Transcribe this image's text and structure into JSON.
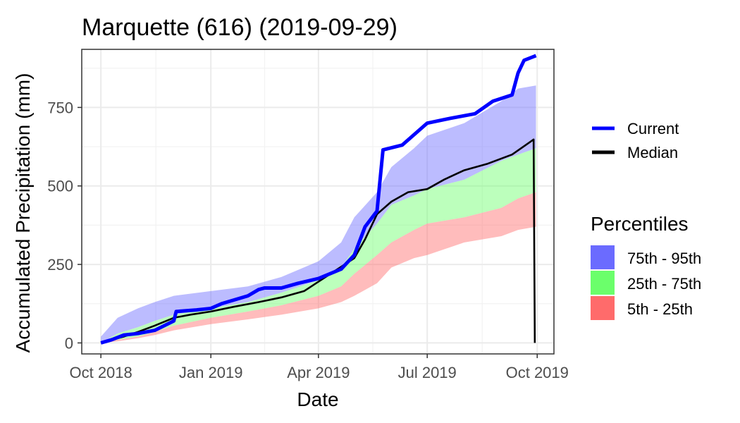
{
  "chart_data": {
    "type": "line",
    "title": "Marquette (616) (2019-09-29)",
    "xlabel": "Date",
    "ylabel": "Accumulated Precipitation (mm)",
    "x_range": [
      "2018-09-15",
      "2019-10-15"
    ],
    "ylim": [
      -35,
      935
    ],
    "x_ticks": [
      {
        "date": "2018-10-01",
        "label": "Oct 2018"
      },
      {
        "date": "2019-01-01",
        "label": "Jan 2019"
      },
      {
        "date": "2019-04-01",
        "label": "Apr 2019"
      },
      {
        "date": "2019-07-01",
        "label": "Jul 2019"
      },
      {
        "date": "2019-10-01",
        "label": "Oct 2019"
      }
    ],
    "y_ticks": [
      0,
      250,
      500,
      750
    ],
    "grid": true,
    "legend_position": "right",
    "series": [
      {
        "name": "Current",
        "color": "#0000ff",
        "points": [
          [
            "2018-10-01",
            0
          ],
          [
            "2018-10-10",
            10
          ],
          [
            "2018-10-20",
            25
          ],
          [
            "2018-11-01",
            30
          ],
          [
            "2018-11-15",
            40
          ],
          [
            "2018-12-01",
            70
          ],
          [
            "2018-12-03",
            100
          ],
          [
            "2018-12-20",
            105
          ],
          [
            "2019-01-01",
            110
          ],
          [
            "2019-01-10",
            125
          ],
          [
            "2019-02-01",
            150
          ],
          [
            "2019-02-10",
            170
          ],
          [
            "2019-02-15",
            175
          ],
          [
            "2019-03-01",
            175
          ],
          [
            "2019-03-15",
            190
          ],
          [
            "2019-04-01",
            205
          ],
          [
            "2019-04-20",
            235
          ],
          [
            "2019-05-01",
            280
          ],
          [
            "2019-05-10",
            370
          ],
          [
            "2019-05-20",
            420
          ],
          [
            "2019-05-25",
            615
          ],
          [
            "2019-06-10",
            630
          ],
          [
            "2019-07-01",
            700
          ],
          [
            "2019-07-20",
            715
          ],
          [
            "2019-08-10",
            730
          ],
          [
            "2019-08-25",
            770
          ],
          [
            "2019-09-10",
            790
          ],
          [
            "2019-09-15",
            860
          ],
          [
            "2019-09-20",
            900
          ],
          [
            "2019-09-30",
            915
          ]
        ]
      },
      {
        "name": "Median",
        "color": "#000000",
        "points": [
          [
            "2018-10-01",
            0
          ],
          [
            "2018-10-20",
            20
          ],
          [
            "2018-11-01",
            35
          ],
          [
            "2018-11-15",
            55
          ],
          [
            "2018-12-01",
            80
          ],
          [
            "2018-12-15",
            90
          ],
          [
            "2019-01-01",
            100
          ],
          [
            "2019-01-20",
            115
          ],
          [
            "2019-02-10",
            130
          ],
          [
            "2019-03-01",
            145
          ],
          [
            "2019-03-20",
            165
          ],
          [
            "2019-04-01",
            195
          ],
          [
            "2019-04-15",
            230
          ],
          [
            "2019-05-01",
            270
          ],
          [
            "2019-05-10",
            330
          ],
          [
            "2019-05-20",
            410
          ],
          [
            "2019-06-01",
            450
          ],
          [
            "2019-06-15",
            480
          ],
          [
            "2019-07-01",
            490
          ],
          [
            "2019-07-15",
            520
          ],
          [
            "2019-08-01",
            550
          ],
          [
            "2019-08-20",
            570
          ],
          [
            "2019-09-10",
            600
          ],
          [
            "2019-09-25",
            640
          ],
          [
            "2019-09-28",
            648
          ],
          [
            "2019-09-29",
            0
          ]
        ]
      }
    ],
    "bands": [
      {
        "name": "75th - 95th",
        "color": "#6b6bff",
        "upper": [
          [
            "2018-10-01",
            20
          ],
          [
            "2018-10-15",
            80
          ],
          [
            "2018-11-01",
            110
          ],
          [
            "2018-11-15",
            130
          ],
          [
            "2018-12-01",
            150
          ],
          [
            "2019-01-01",
            165
          ],
          [
            "2019-02-01",
            180
          ],
          [
            "2019-03-01",
            210
          ],
          [
            "2019-04-01",
            260
          ],
          [
            "2019-04-20",
            320
          ],
          [
            "2019-05-01",
            400
          ],
          [
            "2019-05-20",
            480
          ],
          [
            "2019-06-01",
            560
          ],
          [
            "2019-06-20",
            620
          ],
          [
            "2019-07-01",
            660
          ],
          [
            "2019-08-01",
            700
          ],
          [
            "2019-09-01",
            770
          ],
          [
            "2019-09-15",
            810
          ],
          [
            "2019-09-30",
            820
          ]
        ],
        "lower": [
          [
            "2018-10-01",
            0
          ],
          [
            "2018-10-15",
            30
          ],
          [
            "2018-11-01",
            50
          ],
          [
            "2018-11-15",
            70
          ],
          [
            "2018-12-01",
            90
          ],
          [
            "2019-01-01",
            110
          ],
          [
            "2019-02-01",
            130
          ],
          [
            "2019-03-01",
            160
          ],
          [
            "2019-04-01",
            200
          ],
          [
            "2019-04-20",
            240
          ],
          [
            "2019-05-01",
            300
          ],
          [
            "2019-05-20",
            380
          ],
          [
            "2019-06-01",
            440
          ],
          [
            "2019-06-20",
            470
          ],
          [
            "2019-07-01",
            490
          ],
          [
            "2019-08-01",
            520
          ],
          [
            "2019-09-01",
            580
          ],
          [
            "2019-09-15",
            600
          ],
          [
            "2019-09-30",
            620
          ]
        ]
      },
      {
        "name": "25th - 75th",
        "color": "#6bff6b",
        "upper": [
          [
            "2018-10-01",
            0
          ],
          [
            "2018-10-15",
            30
          ],
          [
            "2018-11-01",
            50
          ],
          [
            "2018-11-15",
            70
          ],
          [
            "2018-12-01",
            90
          ],
          [
            "2019-01-01",
            110
          ],
          [
            "2019-02-01",
            130
          ],
          [
            "2019-03-01",
            160
          ],
          [
            "2019-04-01",
            200
          ],
          [
            "2019-04-20",
            240
          ],
          [
            "2019-05-01",
            300
          ],
          [
            "2019-05-20",
            380
          ],
          [
            "2019-06-01",
            440
          ],
          [
            "2019-06-20",
            470
          ],
          [
            "2019-07-01",
            490
          ],
          [
            "2019-08-01",
            520
          ],
          [
            "2019-09-01",
            580
          ],
          [
            "2019-09-15",
            600
          ],
          [
            "2019-09-30",
            620
          ]
        ],
        "lower": [
          [
            "2018-10-01",
            0
          ],
          [
            "2018-10-15",
            10
          ],
          [
            "2018-11-01",
            20
          ],
          [
            "2018-11-15",
            35
          ],
          [
            "2018-12-01",
            55
          ],
          [
            "2019-01-01",
            80
          ],
          [
            "2019-02-01",
            100
          ],
          [
            "2019-03-01",
            120
          ],
          [
            "2019-04-01",
            150
          ],
          [
            "2019-04-20",
            180
          ],
          [
            "2019-05-01",
            220
          ],
          [
            "2019-05-20",
            280
          ],
          [
            "2019-06-01",
            320
          ],
          [
            "2019-06-20",
            360
          ],
          [
            "2019-07-01",
            380
          ],
          [
            "2019-08-01",
            400
          ],
          [
            "2019-09-01",
            430
          ],
          [
            "2019-09-15",
            460
          ],
          [
            "2019-09-30",
            480
          ]
        ]
      },
      {
        "name": "5th - 25th",
        "color": "#ff6b6b",
        "upper": [
          [
            "2018-10-01",
            0
          ],
          [
            "2018-10-15",
            10
          ],
          [
            "2018-11-01",
            20
          ],
          [
            "2018-11-15",
            35
          ],
          [
            "2018-12-01",
            55
          ],
          [
            "2019-01-01",
            80
          ],
          [
            "2019-02-01",
            100
          ],
          [
            "2019-03-01",
            120
          ],
          [
            "2019-04-01",
            150
          ],
          [
            "2019-04-20",
            180
          ],
          [
            "2019-05-01",
            220
          ],
          [
            "2019-05-20",
            280
          ],
          [
            "2019-06-01",
            320
          ],
          [
            "2019-06-20",
            360
          ],
          [
            "2019-07-01",
            380
          ],
          [
            "2019-08-01",
            400
          ],
          [
            "2019-09-01",
            430
          ],
          [
            "2019-09-15",
            460
          ],
          [
            "2019-09-30",
            480
          ]
        ],
        "lower": [
          [
            "2018-10-01",
            0
          ],
          [
            "2018-10-15",
            5
          ],
          [
            "2018-11-01",
            15
          ],
          [
            "2018-11-15",
            25
          ],
          [
            "2018-12-01",
            40
          ],
          [
            "2019-01-01",
            60
          ],
          [
            "2019-02-01",
            75
          ],
          [
            "2019-03-01",
            90
          ],
          [
            "2019-04-01",
            110
          ],
          [
            "2019-04-20",
            130
          ],
          [
            "2019-05-01",
            150
          ],
          [
            "2019-05-20",
            190
          ],
          [
            "2019-06-01",
            240
          ],
          [
            "2019-06-20",
            270
          ],
          [
            "2019-07-01",
            280
          ],
          [
            "2019-08-01",
            320
          ],
          [
            "2019-09-01",
            340
          ],
          [
            "2019-09-15",
            360
          ],
          [
            "2019-09-30",
            370
          ]
        ]
      }
    ],
    "legend": {
      "lines": [
        "Current",
        "Median"
      ],
      "percentiles_title": "Percentiles"
    }
  }
}
